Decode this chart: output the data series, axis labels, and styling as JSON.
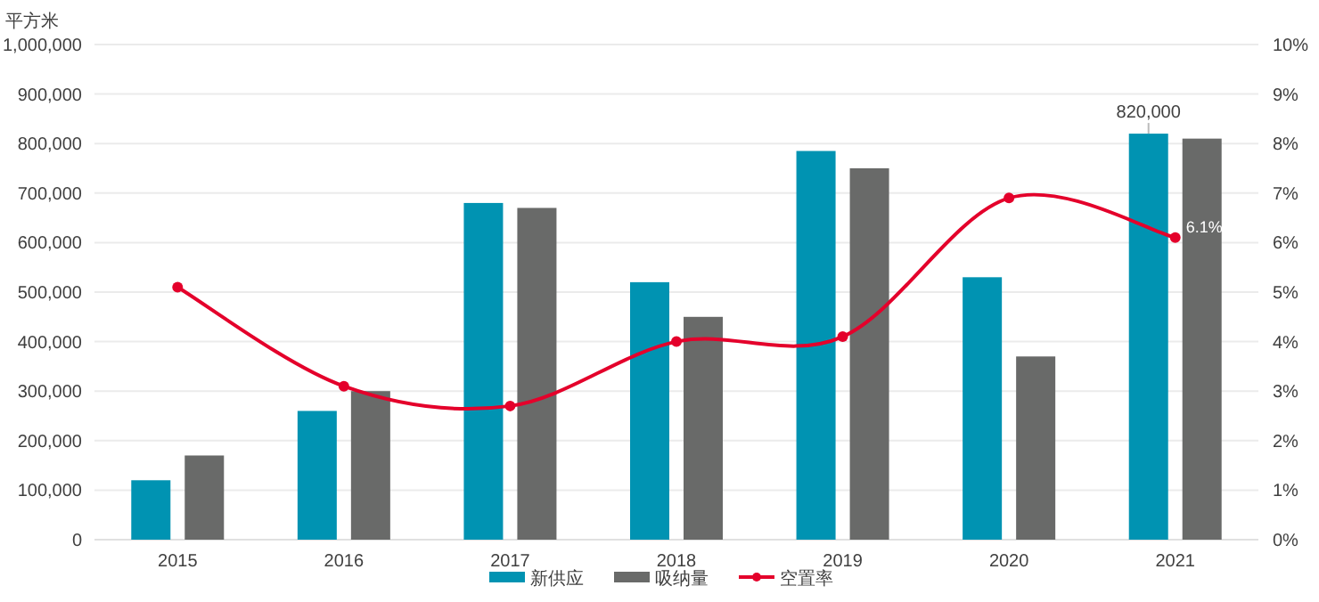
{
  "chart_data": {
    "type": "bar",
    "ylabel": "平方米",
    "categories": [
      "2015",
      "2016",
      "2017",
      "2018",
      "2019",
      "2020",
      "2021"
    ],
    "series": [
      {
        "name": "新供应",
        "color": "#0093b2",
        "values": [
          120000,
          260000,
          680000,
          520000,
          785000,
          530000,
          820000
        ],
        "value_labels": [
          null,
          null,
          null,
          null,
          null,
          null,
          "820,000"
        ]
      },
      {
        "name": "吸纳量",
        "color": "#696a69",
        "values": [
          170000,
          300000,
          670000,
          450000,
          750000,
          370000,
          810000
        ]
      },
      {
        "name": "空置率",
        "type": "line",
        "axis": "y2",
        "color": "#e4002b",
        "marker": "circle",
        "values": [
          5.1,
          3.1,
          2.7,
          4.0,
          4.1,
          6.9,
          6.1
        ],
        "value_labels": [
          null,
          null,
          null,
          null,
          null,
          null,
          "6.1%"
        ]
      }
    ],
    "ylim": [
      0,
      1000000
    ],
    "yticks": [
      {
        "value": 0,
        "label": "0"
      },
      {
        "value": 100000,
        "label": "100,000"
      },
      {
        "value": 200000,
        "label": "200,000"
      },
      {
        "value": 300000,
        "label": "300,000"
      },
      {
        "value": 400000,
        "label": "400,000"
      },
      {
        "value": 500000,
        "label": "500,000"
      },
      {
        "value": 600000,
        "label": "600,000"
      },
      {
        "value": 700000,
        "label": "700,000"
      },
      {
        "value": 800000,
        "label": "800,000"
      },
      {
        "value": 900000,
        "label": "900,000"
      },
      {
        "value": 1000000,
        "label": "1,000,000"
      }
    ],
    "y2lim": [
      0,
      10
    ],
    "y2ticks": [
      {
        "value": 0,
        "label": "0%"
      },
      {
        "value": 1,
        "label": "1%"
      },
      {
        "value": 2,
        "label": "2%"
      },
      {
        "value": 3,
        "label": "3%"
      },
      {
        "value": 4,
        "label": "4%"
      },
      {
        "value": 5,
        "label": "5%"
      },
      {
        "value": 6,
        "label": "6%"
      },
      {
        "value": 7,
        "label": "7%"
      },
      {
        "value": 8,
        "label": "8%"
      },
      {
        "value": 9,
        "label": "9%"
      },
      {
        "value": 10,
        "label": "10%"
      }
    ],
    "grid": "y",
    "legend": "bottom"
  }
}
